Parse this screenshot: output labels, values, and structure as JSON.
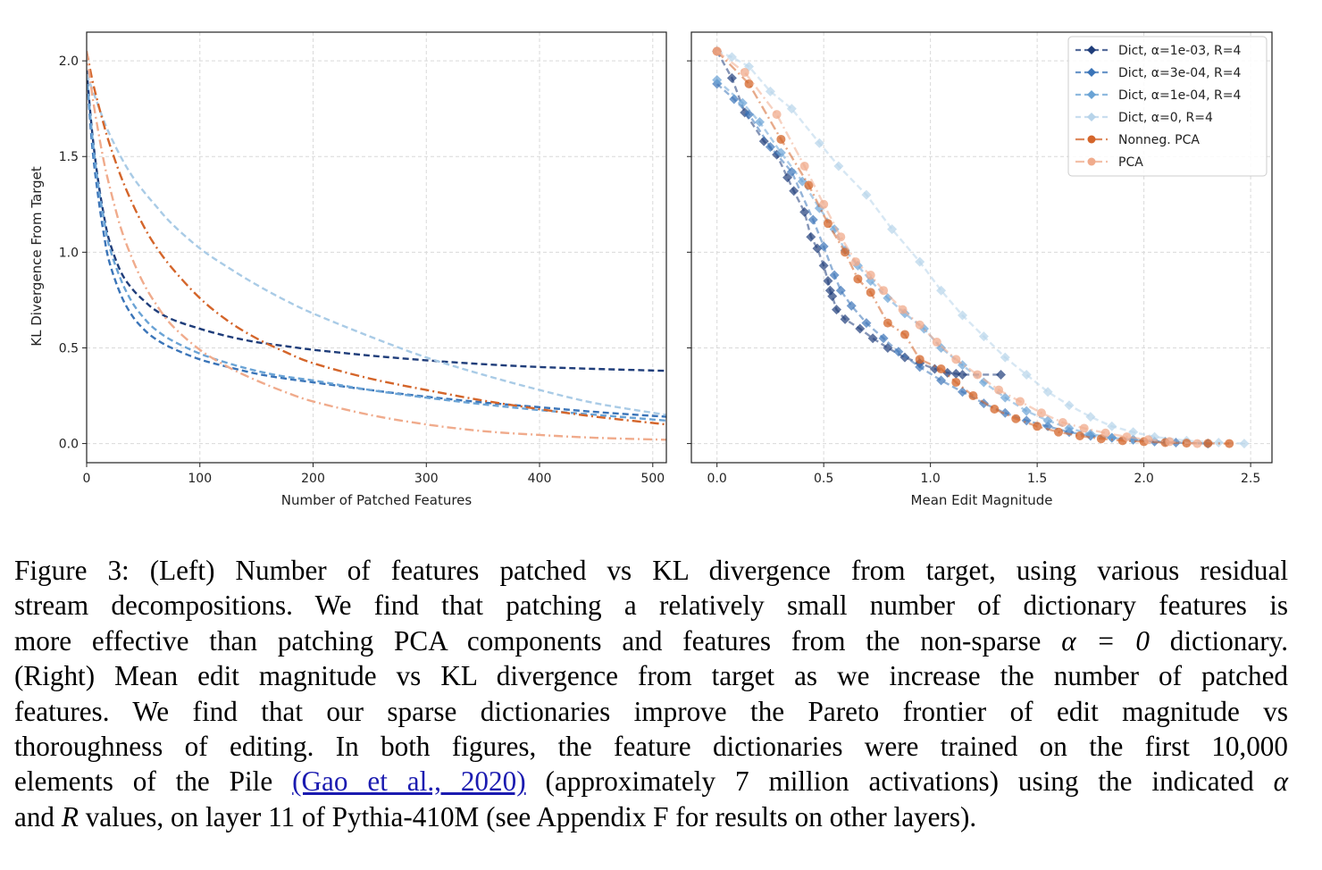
{
  "chart_data": [
    {
      "type": "line",
      "panel": "left",
      "title": "",
      "xlabel": "Number of Patched Features",
      "ylabel": "KL Divergence From Target",
      "xlim": [
        0,
        512
      ],
      "ylim": [
        -0.1,
        2.15
      ],
      "xticks": [
        0,
        100,
        200,
        300,
        400,
        500
      ],
      "xtick_labels": [
        "0",
        "100",
        "200",
        "300",
        "400",
        "500"
      ],
      "yticks": [
        0.0,
        0.5,
        1.0,
        1.5,
        2.0
      ],
      "ytick_labels": [
        "0.0",
        "0.5",
        "1.0",
        "1.5",
        "2.0"
      ],
      "grid": true,
      "legend": "none",
      "x": [
        0,
        5,
        10,
        15,
        20,
        30,
        40,
        50,
        60,
        75,
        100,
        125,
        150,
        175,
        200,
        250,
        300,
        350,
        400,
        450,
        512
      ],
      "series": [
        {
          "name": "Dict, α=1e-03, R=4",
          "color": "#1f3d7a",
          "style": "dashed",
          "values": [
            1.95,
            1.62,
            1.38,
            1.2,
            1.06,
            0.9,
            0.81,
            0.75,
            0.7,
            0.65,
            0.6,
            0.56,
            0.53,
            0.51,
            0.49,
            0.46,
            0.435,
            0.415,
            0.4,
            0.39,
            0.38
          ]
        },
        {
          "name": "Dict, α=3e-04, R=4",
          "color": "#3a74b8",
          "style": "dashed",
          "values": [
            1.93,
            1.55,
            1.3,
            1.1,
            0.95,
            0.78,
            0.67,
            0.6,
            0.55,
            0.5,
            0.44,
            0.4,
            0.365,
            0.34,
            0.32,
            0.28,
            0.245,
            0.215,
            0.19,
            0.165,
            0.14
          ]
        },
        {
          "name": "Dict, α=1e-04, R=4",
          "color": "#6aa3d5",
          "style": "dashed",
          "values": [
            1.93,
            1.6,
            1.36,
            1.18,
            1.03,
            0.86,
            0.74,
            0.66,
            0.6,
            0.54,
            0.47,
            0.42,
            0.38,
            0.35,
            0.33,
            0.28,
            0.24,
            0.205,
            0.175,
            0.15,
            0.12
          ]
        },
        {
          "name": "Dict, α=0, R=4",
          "color": "#a9cbe6",
          "style": "dashed",
          "values": [
            1.93,
            1.85,
            1.77,
            1.69,
            1.62,
            1.5,
            1.4,
            1.32,
            1.25,
            1.15,
            1.02,
            0.92,
            0.83,
            0.75,
            0.68,
            0.56,
            0.45,
            0.36,
            0.28,
            0.21,
            0.15
          ]
        },
        {
          "name": "Nonneg. PCA",
          "color": "#d4652a",
          "style": "dashdot",
          "values": [
            2.05,
            1.9,
            1.78,
            1.67,
            1.57,
            1.4,
            1.26,
            1.14,
            1.04,
            0.92,
            0.76,
            0.64,
            0.55,
            0.48,
            0.42,
            0.34,
            0.28,
            0.225,
            0.18,
            0.14,
            0.1
          ]
        },
        {
          "name": "PCA",
          "color": "#f0ab8c",
          "style": "dashdot",
          "values": [
            2.05,
            1.82,
            1.64,
            1.48,
            1.35,
            1.13,
            0.97,
            0.84,
            0.74,
            0.62,
            0.49,
            0.4,
            0.33,
            0.27,
            0.22,
            0.15,
            0.1,
            0.065,
            0.045,
            0.03,
            0.02
          ]
        }
      ]
    },
    {
      "type": "line",
      "panel": "right",
      "title": "",
      "xlabel": "Mean Edit Magnitude",
      "ylabel": "",
      "xlim": [
        -0.12,
        2.6
      ],
      "ylim": [
        -0.1,
        2.15
      ],
      "xticks": [
        0.0,
        0.5,
        1.0,
        1.5,
        2.0,
        2.5
      ],
      "xtick_labels": [
        "0.0",
        "0.5",
        "1.0",
        "1.5",
        "2.0",
        "2.5"
      ],
      "yticks": [
        0.0,
        0.5,
        1.0,
        1.5,
        2.0
      ],
      "ytick_labels": [
        "",
        "",
        "",
        "",
        ""
      ],
      "grid": true,
      "legend": "top-right",
      "series": [
        {
          "name": "Dict, α=1e-03, R=4",
          "color": "#1f3d7a",
          "marker": "diamond",
          "style": "dashed",
          "x": [
            0.0,
            0.07,
            0.13,
            0.22,
            0.28,
            0.33,
            0.36,
            0.41,
            0.44,
            0.47,
            0.5,
            0.52,
            0.53,
            0.54,
            0.56,
            0.6,
            0.67,
            0.73,
            0.8,
            0.88,
            0.95,
            1.02,
            1.08,
            1.12,
            1.15,
            1.33
          ],
          "y": [
            2.05,
            1.91,
            1.73,
            1.58,
            1.51,
            1.39,
            1.32,
            1.21,
            1.08,
            1.02,
            0.93,
            0.85,
            0.8,
            0.77,
            0.7,
            0.65,
            0.6,
            0.55,
            0.5,
            0.45,
            0.42,
            0.39,
            0.37,
            0.365,
            0.36,
            0.36
          ]
        },
        {
          "name": "Dict, α=3e-04, R=4",
          "color": "#3a74b8",
          "marker": "diamond",
          "style": "dashed",
          "x": [
            0.0,
            0.08,
            0.15,
            0.25,
            0.35,
            0.45,
            0.5,
            0.55,
            0.58,
            0.63,
            0.7,
            0.78,
            0.85,
            0.95,
            1.05,
            1.15,
            1.25,
            1.35,
            1.45,
            1.55,
            1.65,
            1.75,
            1.85,
            1.95,
            2.05,
            2.15,
            2.3
          ],
          "y": [
            1.88,
            1.8,
            1.72,
            1.55,
            1.42,
            1.17,
            1.03,
            0.88,
            0.8,
            0.72,
            0.63,
            0.55,
            0.48,
            0.4,
            0.33,
            0.27,
            0.21,
            0.16,
            0.12,
            0.09,
            0.06,
            0.04,
            0.03,
            0.02,
            0.01,
            0.005,
            0.0
          ]
        },
        {
          "name": "Dict, α=1e-04, R=4",
          "color": "#6aa3d5",
          "marker": "diamond",
          "style": "dashed",
          "x": [
            0.0,
            0.12,
            0.2,
            0.3,
            0.4,
            0.48,
            0.55,
            0.6,
            0.66,
            0.72,
            0.8,
            0.88,
            0.97,
            1.05,
            1.15,
            1.25,
            1.35,
            1.45,
            1.55,
            1.65,
            1.75,
            1.85,
            1.95,
            2.1,
            2.3
          ],
          "y": [
            1.9,
            1.78,
            1.68,
            1.52,
            1.37,
            1.23,
            1.12,
            1.01,
            0.93,
            0.85,
            0.76,
            0.68,
            0.6,
            0.5,
            0.41,
            0.32,
            0.24,
            0.17,
            0.12,
            0.08,
            0.05,
            0.03,
            0.02,
            0.01,
            0.0
          ]
        },
        {
          "name": "Dict, α=0, R=4",
          "color": "#b7d4ea",
          "marker": "diamond",
          "style": "dashed",
          "x": [
            0.0,
            0.07,
            0.15,
            0.25,
            0.35,
            0.48,
            0.57,
            0.7,
            0.82,
            0.95,
            1.05,
            1.15,
            1.25,
            1.35,
            1.45,
            1.55,
            1.65,
            1.75,
            1.85,
            1.95,
            2.05,
            2.2,
            2.35,
            2.47
          ],
          "y": [
            2.05,
            2.02,
            1.97,
            1.84,
            1.75,
            1.57,
            1.45,
            1.3,
            1.12,
            0.95,
            0.8,
            0.67,
            0.56,
            0.45,
            0.36,
            0.27,
            0.2,
            0.14,
            0.09,
            0.06,
            0.035,
            0.015,
            0.005,
            0.0
          ]
        },
        {
          "name": "Nonneg. PCA",
          "color": "#d4652a",
          "marker": "circle",
          "style": "dashdot",
          "x": [
            0.0,
            0.15,
            0.3,
            0.43,
            0.52,
            0.6,
            0.66,
            0.72,
            0.8,
            0.88,
            0.95,
            1.05,
            1.12,
            1.2,
            1.3,
            1.4,
            1.5,
            1.6,
            1.7,
            1.8,
            1.9,
            2.0,
            2.1,
            2.2,
            2.3,
            2.4
          ],
          "y": [
            2.05,
            1.88,
            1.59,
            1.35,
            1.15,
            1.0,
            0.86,
            0.79,
            0.63,
            0.57,
            0.44,
            0.39,
            0.32,
            0.25,
            0.18,
            0.13,
            0.09,
            0.06,
            0.04,
            0.025,
            0.015,
            0.01,
            0.005,
            0.002,
            0.001,
            0.0
          ]
        },
        {
          "name": "PCA",
          "color": "#f0ab8c",
          "marker": "circle",
          "style": "dashdot",
          "x": [
            0.0,
            0.13,
            0.28,
            0.41,
            0.5,
            0.58,
            0.65,
            0.72,
            0.78,
            0.87,
            0.95,
            1.03,
            1.12,
            1.22,
            1.32,
            1.42,
            1.52,
            1.62,
            1.72,
            1.82,
            1.92,
            2.02,
            2.12,
            2.25
          ],
          "y": [
            2.05,
            1.94,
            1.72,
            1.45,
            1.25,
            1.08,
            0.95,
            0.88,
            0.8,
            0.7,
            0.62,
            0.53,
            0.44,
            0.36,
            0.28,
            0.22,
            0.16,
            0.11,
            0.08,
            0.055,
            0.035,
            0.02,
            0.01,
            0.0
          ]
        }
      ]
    }
  ],
  "caption": {
    "lines": [
      "Figure 3: (Left) Number of features patched vs KL divergence from target, using various residual",
      "stream decompositions.  We find that patching a relatively small number of dictionary features is",
      "more effective than patching PCA components and features from the non-sparse ",
      "(Right) Mean edit magnitude vs KL divergence from target as we increase the number of patched",
      "features.  We find that our sparse dictionaries improve the Pareto frontier of edit magnitude vs",
      "thoroughness of editing.  In both figures, the feature dictionaries were trained on the first 10,000",
      "elements of the Pile ",
      "and "
    ],
    "line3_math": "α = 0",
    "line3_tail": " dictionary.",
    "line7_cite": "(Gao et al., 2020)",
    "line7_tail": " (approximately 7 million activations) using the indicated ",
    "line7_math": "α",
    "line8_math": "R",
    "line8_tail": " values, on layer 11 of Pythia-410M (see Appendix F for results on other layers)."
  }
}
